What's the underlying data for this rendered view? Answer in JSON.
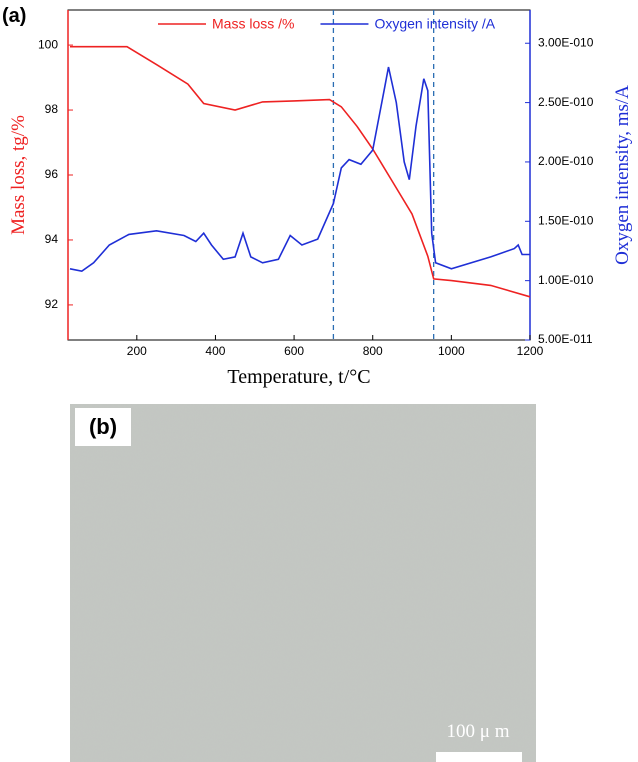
{
  "panel_a_label": "(a)",
  "chart_data": {
    "type": "line",
    "xlabel": "Temperature, t/°C",
    "ylabel": "Mass loss, tg/%",
    "y2label": "Oxygen intensity, ms/A",
    "xlim": [
      25,
      1200
    ],
    "xticks": [
      200,
      400,
      600,
      800,
      1000,
      1200
    ],
    "ylim": [
      90.92,
      101.08
    ],
    "yticks": [
      92,
      94,
      96,
      98,
      100
    ],
    "y2lim": [
      5e-11,
      3.28e-10
    ],
    "y2ticks": [
      {
        "value": 5e-11,
        "label": "5.00E-011"
      },
      {
        "value": 1e-10,
        "label": "1.00E-010"
      },
      {
        "value": 1.5e-10,
        "label": "1.50E-010"
      },
      {
        "value": 2e-10,
        "label": "2.00E-010"
      },
      {
        "value": 2.5e-10,
        "label": "2.50E-010"
      },
      {
        "value": 3e-10,
        "label": "3.00E-010"
      }
    ],
    "grid": false,
    "legend": "top",
    "vlines": [
      700,
      955
    ],
    "series": [
      {
        "name": "Mass loss /%",
        "color": "#ee2222",
        "x": [
          30,
          175,
          250,
          330,
          370,
          450,
          520,
          600,
          690,
          720,
          760,
          800,
          850,
          900,
          940,
          955,
          1000,
          1100,
          1200
        ],
        "values": [
          99.95,
          99.95,
          99.4,
          98.8,
          98.2,
          98.0,
          98.25,
          98.28,
          98.32,
          98.1,
          97.5,
          96.8,
          95.8,
          94.8,
          93.5,
          92.8,
          92.75,
          92.6,
          92.25
        ]
      },
      {
        "name": "Oxygen intensity /A",
        "color": "#1f2fd6",
        "axis": "y2",
        "x": [
          30,
          60,
          90,
          130,
          180,
          250,
          320,
          350,
          370,
          390,
          420,
          450,
          470,
          490,
          520,
          560,
          590,
          620,
          660,
          700,
          720,
          740,
          770,
          800,
          830,
          840,
          860,
          880,
          893,
          910,
          930,
          940,
          950,
          960,
          1000,
          1100,
          1160,
          1170,
          1180,
          1200
        ],
        "values": [
          1.1e-10,
          1.08e-10,
          1.15e-10,
          1.3e-10,
          1.39e-10,
          1.42e-10,
          1.38e-10,
          1.33e-10,
          1.4e-10,
          1.3e-10,
          1.18e-10,
          1.2e-10,
          1.4e-10,
          1.2e-10,
          1.15e-10,
          1.18e-10,
          1.38e-10,
          1.3e-10,
          1.35e-10,
          1.65e-10,
          1.95e-10,
          2.02e-10,
          1.98e-10,
          2.1e-10,
          2.62e-10,
          2.8e-10,
          2.5e-10,
          2e-10,
          1.85e-10,
          2.3e-10,
          2.7e-10,
          2.6e-10,
          1.4e-10,
          1.15e-10,
          1.1e-10,
          1.2e-10,
          1.27e-10,
          1.3e-10,
          1.22e-10,
          1.22e-10
        ]
      }
    ]
  },
  "panel_b": {
    "label": "(b)",
    "scale_bar_label": "100 μ m"
  }
}
